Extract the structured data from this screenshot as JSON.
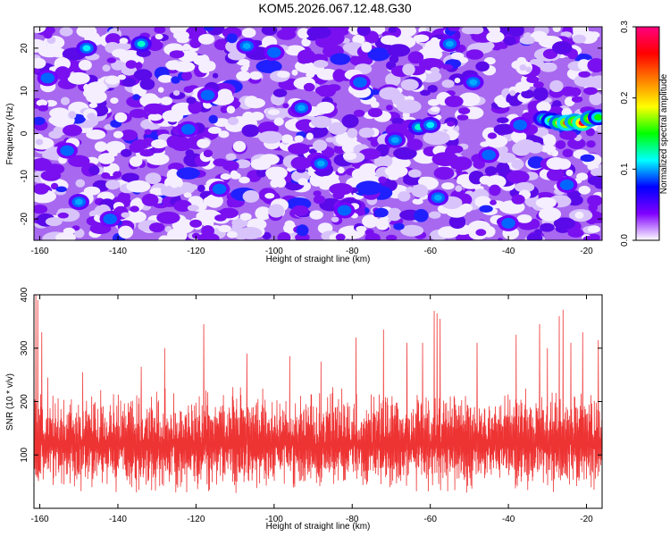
{
  "figure": {
    "title": "KOM5.2026.067.12.48.G30"
  },
  "chart_data": [
    {
      "type": "heatmap",
      "xlabel": "Height of straight line (km)",
      "ylabel": "Frequency (Hz)",
      "xlim": [
        -161.5,
        -16
      ],
      "ylim": [
        -25,
        25
      ],
      "x_ticks": [
        -160,
        -140,
        -120,
        -100,
        -80,
        -60,
        -40,
        -20
      ],
      "y_ticks": [
        -20,
        -10,
        0,
        10,
        20
      ],
      "colorbar": {
        "label": "Normalized spectral amplitude",
        "range": [
          0.0,
          0.3
        ],
        "ticks": [
          "0.0",
          "0.1",
          "0.2",
          "0.3"
        ],
        "colormap": [
          "#ffffff",
          "#8000ff",
          "#0000ff",
          "#00ffff",
          "#00ff00",
          "#ffff00",
          "#ff8000",
          "#ff0000",
          "#ff0080"
        ]
      },
      "background_level": 0.05,
      "hotspots": [
        {
          "x": -31,
          "y": 3.5,
          "value": 0.13
        },
        {
          "x": -29,
          "y": 3.0,
          "value": 0.16
        },
        {
          "x": -27,
          "y": 2.5,
          "value": 0.2
        },
        {
          "x": -25,
          "y": 2.5,
          "value": 0.24
        },
        {
          "x": -23,
          "y": 2.8,
          "value": 0.22
        },
        {
          "x": -21,
          "y": 2.5,
          "value": 0.27
        },
        {
          "x": -19,
          "y": 3.5,
          "value": 0.21
        },
        {
          "x": -17,
          "y": 3.8,
          "value": 0.15
        },
        {
          "x": -63,
          "y": 1.5,
          "value": 0.12
        },
        {
          "x": -60,
          "y": 2.0,
          "value": 0.11
        },
        {
          "x": -69,
          "y": -1.5,
          "value": 0.1
        },
        {
          "x": -37,
          "y": 2.0,
          "value": 0.09
        },
        {
          "x": -148,
          "y": 20.0,
          "value": 0.11
        },
        {
          "x": -134,
          "y": 21.0,
          "value": 0.12
        },
        {
          "x": -107,
          "y": 20.5,
          "value": 0.1
        },
        {
          "x": -100,
          "y": 19.0,
          "value": 0.09
        },
        {
          "x": -55,
          "y": 21.0,
          "value": 0.1
        },
        {
          "x": -158,
          "y": 13.0,
          "value": 0.09
        },
        {
          "x": -117,
          "y": 9.0,
          "value": 0.09
        },
        {
          "x": -93,
          "y": 6.0,
          "value": 0.1
        },
        {
          "x": -78,
          "y": 12.0,
          "value": 0.09
        },
        {
          "x": -49,
          "y": 12.0,
          "value": 0.1
        },
        {
          "x": -153,
          "y": -4.0,
          "value": 0.09
        },
        {
          "x": -122,
          "y": 1.0,
          "value": 0.09
        },
        {
          "x": -88,
          "y": -7.0,
          "value": 0.1
        },
        {
          "x": -45,
          "y": -5.0,
          "value": 0.09
        },
        {
          "x": -150,
          "y": -16.0,
          "value": 0.1
        },
        {
          "x": -142,
          "y": -20.0,
          "value": 0.09
        },
        {
          "x": -114,
          "y": -13.0,
          "value": 0.09
        },
        {
          "x": -82,
          "y": -18.0,
          "value": 0.09
        },
        {
          "x": -58,
          "y": -15.0,
          "value": 0.1
        },
        {
          "x": -40,
          "y": -21.0,
          "value": 0.09
        },
        {
          "x": -25,
          "y": -12.0,
          "value": 0.09
        }
      ]
    },
    {
      "type": "line",
      "xlabel": "Height of straight line (km)",
      "ylabel": "SNR (10 * v/v)",
      "xlim": [
        -161.5,
        -16
      ],
      "ylim": [
        0,
        400
      ],
      "x_ticks": [
        -160,
        -140,
        -120,
        -100,
        -80,
        -60,
        -40,
        -20
      ],
      "y_ticks": [
        100,
        200,
        300,
        400
      ],
      "series_color": "#ee3333",
      "baseline": 120,
      "typical_spread": [
        40,
        230
      ],
      "peaks": [
        {
          "x": -161,
          "y": 400
        },
        {
          "x": -160.5,
          "y": 390
        },
        {
          "x": -159.5,
          "y": 330
        },
        {
          "x": -158,
          "y": 245
        },
        {
          "x": -149,
          "y": 255
        },
        {
          "x": -134,
          "y": 265
        },
        {
          "x": -128,
          "y": 300
        },
        {
          "x": -118,
          "y": 345
        },
        {
          "x": -107,
          "y": 290
        },
        {
          "x": -96,
          "y": 285
        },
        {
          "x": -88,
          "y": 275
        },
        {
          "x": -79,
          "y": 320
        },
        {
          "x": -72,
          "y": 335
        },
        {
          "x": -66,
          "y": 310
        },
        {
          "x": -62,
          "y": 310
        },
        {
          "x": -59,
          "y": 370
        },
        {
          "x": -58.3,
          "y": 365
        },
        {
          "x": -57.5,
          "y": 355
        },
        {
          "x": -48,
          "y": 310
        },
        {
          "x": -38,
          "y": 325
        },
        {
          "x": -32,
          "y": 345
        },
        {
          "x": -30,
          "y": 300
        },
        {
          "x": -27,
          "y": 360
        },
        {
          "x": -26,
          "y": 372
        },
        {
          "x": -24,
          "y": 310
        },
        {
          "x": -21,
          "y": 330
        },
        {
          "x": -17,
          "y": 315
        }
      ]
    }
  ]
}
